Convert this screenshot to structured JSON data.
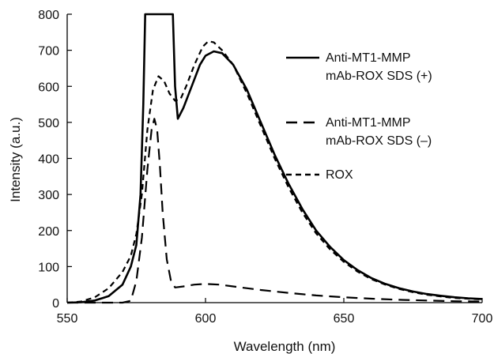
{
  "chart_data": {
    "type": "line",
    "xlabel": "Wavelength (nm)",
    "ylabel": "Intensity (a.u.)",
    "xlim": [
      550,
      700
    ],
    "ylim": [
      0,
      800
    ],
    "x_ticks": [
      550,
      600,
      650,
      700
    ],
    "y_ticks": [
      0,
      100,
      200,
      300,
      400,
      500,
      600,
      700,
      800
    ],
    "grid": false,
    "legend_position": "top-right",
    "series": [
      {
        "name": "Anti-MT1-MMP mAb-ROX SDS (+)",
        "legend_lines": [
          "Anti-MT1-MMP",
          "mAb-ROX SDS (+)"
        ],
        "style": "solid",
        "color": "#000000",
        "points": [
          [
            550,
            0
          ],
          [
            555,
            1
          ],
          [
            560,
            6
          ],
          [
            565,
            18
          ],
          [
            570,
            50
          ],
          [
            573,
            100
          ],
          [
            575,
            160
          ],
          [
            576.5,
            300
          ],
          [
            577.5,
            550
          ],
          [
            578.2,
            800
          ],
          [
            588.2,
            800
          ],
          [
            589,
            600
          ],
          [
            590,
            510
          ],
          [
            592,
            540
          ],
          [
            595,
            600
          ],
          [
            598,
            660
          ],
          [
            600,
            685
          ],
          [
            603,
            697
          ],
          [
            606,
            692
          ],
          [
            610,
            660
          ],
          [
            615,
            590
          ],
          [
            620,
            500
          ],
          [
            625,
            410
          ],
          [
            630,
            330
          ],
          [
            635,
            260
          ],
          [
            640,
            200
          ],
          [
            645,
            155
          ],
          [
            650,
            118
          ],
          [
            655,
            90
          ],
          [
            660,
            68
          ],
          [
            665,
            52
          ],
          [
            670,
            40
          ],
          [
            675,
            31
          ],
          [
            680,
            24
          ],
          [
            685,
            19
          ],
          [
            690,
            15
          ],
          [
            695,
            12
          ],
          [
            700,
            10
          ]
        ]
      },
      {
        "name": "Anti-MT1-MMP mAb-ROX SDS (–)",
        "legend_lines": [
          "Anti-MT1-MMP",
          "mAb-ROX SDS (–)"
        ],
        "style": "long-dash",
        "color": "#000000",
        "points": [
          [
            550,
            0
          ],
          [
            570,
            0
          ],
          [
            573,
            5
          ],
          [
            575,
            60
          ],
          [
            577,
            180
          ],
          [
            579,
            370
          ],
          [
            580.5,
            480
          ],
          [
            581.5,
            510
          ],
          [
            582.5,
            480
          ],
          [
            583.5,
            380
          ],
          [
            584.5,
            250
          ],
          [
            586,
            120
          ],
          [
            587.5,
            60
          ],
          [
            589,
            42
          ],
          [
            592,
            45
          ],
          [
            596,
            50
          ],
          [
            600,
            52
          ],
          [
            605,
            50
          ],
          [
            610,
            45
          ],
          [
            620,
            35
          ],
          [
            630,
            27
          ],
          [
            640,
            20
          ],
          [
            650,
            15
          ],
          [
            660,
            11
          ],
          [
            670,
            8
          ],
          [
            680,
            6
          ],
          [
            690,
            4
          ],
          [
            700,
            3
          ]
        ]
      },
      {
        "name": "ROX",
        "legend_lines": [
          "ROX"
        ],
        "style": "short-dash",
        "color": "#000000",
        "points": [
          [
            550,
            0
          ],
          [
            555,
            3
          ],
          [
            560,
            15
          ],
          [
            565,
            40
          ],
          [
            570,
            85
          ],
          [
            573,
            130
          ],
          [
            575,
            190
          ],
          [
            577,
            300
          ],
          [
            579,
            480
          ],
          [
            581,
            590
          ],
          [
            583,
            628
          ],
          [
            585,
            615
          ],
          [
            587,
            580
          ],
          [
            589,
            560
          ],
          [
            591,
            565
          ],
          [
            593,
            600
          ],
          [
            596,
            660
          ],
          [
            599,
            710
          ],
          [
            601,
            725
          ],
          [
            603,
            722
          ],
          [
            606,
            700
          ],
          [
            610,
            660
          ],
          [
            615,
            580
          ],
          [
            620,
            490
          ],
          [
            625,
            400
          ],
          [
            630,
            320
          ],
          [
            635,
            250
          ],
          [
            640,
            192
          ],
          [
            645,
            148
          ],
          [
            650,
            113
          ],
          [
            655,
            86
          ],
          [
            660,
            65
          ],
          [
            665,
            50
          ],
          [
            670,
            38
          ],
          [
            675,
            29
          ],
          [
            680,
            22
          ],
          [
            685,
            17
          ],
          [
            690,
            13
          ],
          [
            695,
            11
          ],
          [
            700,
            9
          ]
        ]
      }
    ]
  }
}
